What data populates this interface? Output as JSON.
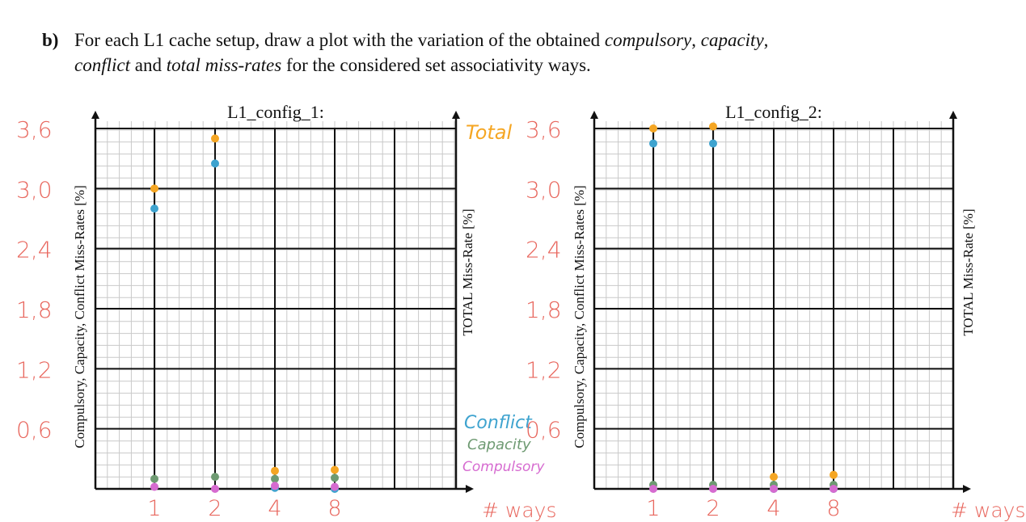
{
  "question": {
    "label": "b)",
    "line1_a": "For each L1 cache setup, draw a plot with the variation of the obtained ",
    "compulsory": "compulsory",
    "sep1": ", ",
    "capacity": "capacity",
    "sep2": ",",
    "conflict": "conflict",
    "line2_a": " and ",
    "total": "total miss-rates",
    "line2_b": " for the considered set associativity ways."
  },
  "colors": {
    "total": "#f5a623",
    "conflict": "#3ea3cf",
    "capacity": "#6e9a72",
    "compulsory": "#d66bd0",
    "handwriting": "#e8675e"
  },
  "chart_data": [
    {
      "type": "scatter",
      "title": "L1_config_1:",
      "ylabel": "Compulsory, Capacity, Conflict Miss-Rates [%]",
      "y2label": "TOTAL Miss-Rate [%]",
      "xlabel": "# ways",
      "x_ticks": [
        "1",
        "2",
        "4",
        "8"
      ],
      "y_ticks": [
        "3,6",
        "3,0",
        "2,4",
        "1,8",
        "1,2",
        "0,6"
      ],
      "ylim": [
        0,
        3.6
      ],
      "grid": true,
      "legend": [
        "Total",
        "Conflict",
        "Capacity",
        "Compulsory"
      ],
      "series": [
        {
          "name": "Total",
          "x": [
            "1",
            "2",
            "4",
            "8"
          ],
          "y": [
            3.0,
            3.5,
            0.18,
            0.19
          ]
        },
        {
          "name": "Conflict",
          "x": [
            "1",
            "2",
            "4",
            "8"
          ],
          "y": [
            2.8,
            3.25,
            0.01,
            0.0
          ]
        },
        {
          "name": "Capacity",
          "x": [
            "1",
            "2",
            "4",
            "8"
          ],
          "y": [
            0.1,
            0.12,
            0.1,
            0.11
          ]
        },
        {
          "name": "Compulsory",
          "x": [
            "1",
            "2",
            "4",
            "8"
          ],
          "y": [
            0.02,
            0.0,
            0.03,
            0.02
          ]
        }
      ]
    },
    {
      "type": "scatter",
      "title": "L1_config_2:",
      "ylabel": "Compulsory, Capacity, Conflict Miss-Rates [%]",
      "y2label": "TOTAL Miss-Rate [%]",
      "xlabel": "# ways",
      "x_ticks": [
        "1",
        "2",
        "4",
        "8"
      ],
      "y_ticks": [
        "3,6",
        "3,0",
        "2,4",
        "1,8",
        "1,2",
        "0,6"
      ],
      "ylim": [
        0,
        3.6
      ],
      "grid": true,
      "series": [
        {
          "name": "Total",
          "x": [
            "1",
            "2",
            "4",
            "8"
          ],
          "y": [
            3.6,
            3.62,
            0.12,
            0.14
          ]
        },
        {
          "name": "Conflict",
          "x": [
            "1",
            "2",
            "4",
            "8"
          ],
          "y": [
            3.45,
            3.45,
            0.0,
            0.0
          ]
        },
        {
          "name": "Capacity",
          "x": [
            "1",
            "2",
            "4",
            "8"
          ],
          "y": [
            0.04,
            0.04,
            0.04,
            0.04
          ]
        },
        {
          "name": "Compulsory",
          "x": [
            "1",
            "2",
            "4",
            "8"
          ],
          "y": [
            0.0,
            0.0,
            0.0,
            0.0
          ]
        }
      ]
    }
  ]
}
